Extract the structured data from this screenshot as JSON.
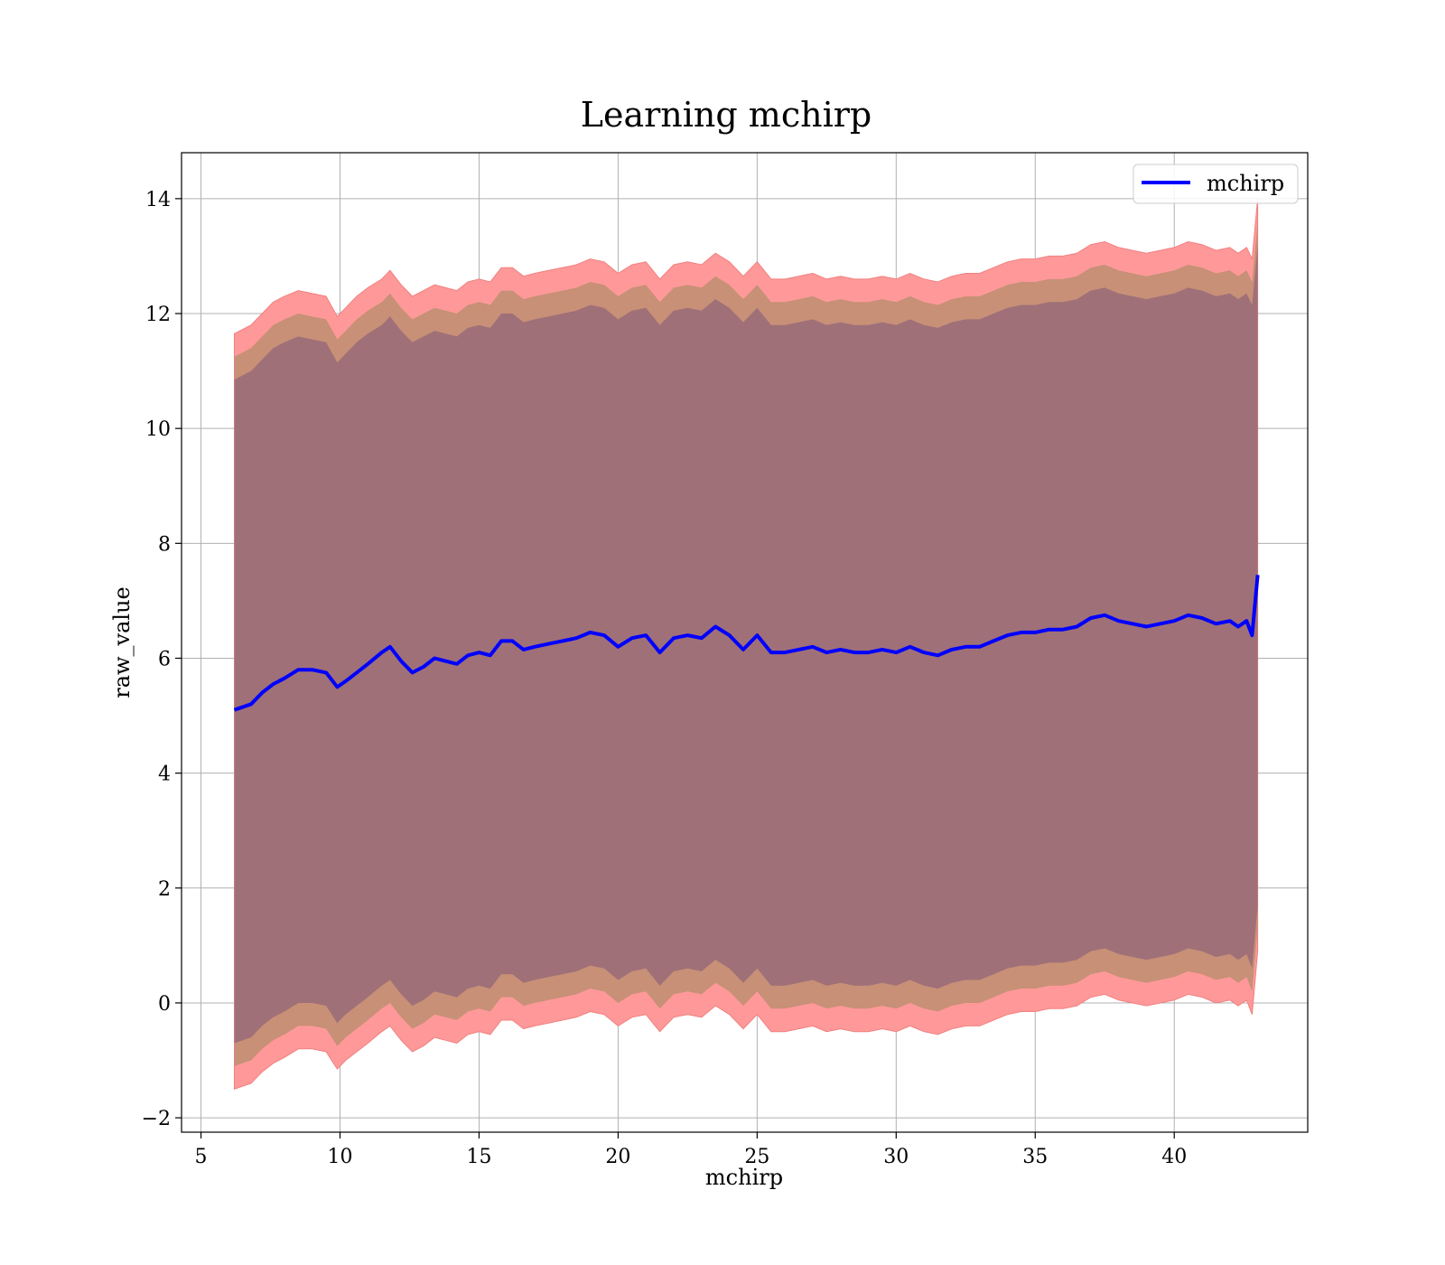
{
  "chart_data": {
    "type": "line",
    "title": "Learning mchirp",
    "xlabel": "mchirp",
    "ylabel": "raw_value",
    "xlim": [
      4.3,
      44.8
    ],
    "ylim": [
      -2.25,
      14.8
    ],
    "xticks": [
      5,
      10,
      15,
      20,
      25,
      30,
      35,
      40
    ],
    "yticks": [
      -2,
      0,
      2,
      4,
      6,
      8,
      10,
      12,
      14
    ],
    "ytick_labels": [
      "−2",
      "0",
      "2",
      "4",
      "6",
      "8",
      "10",
      "12",
      "14"
    ],
    "grid": true,
    "legend_position": "top-right",
    "colors": {
      "line": "#0000ff",
      "band_outer": "#ff9999",
      "band_middle": "#c79077",
      "band_inner": "#a07078"
    },
    "series": [
      {
        "name": "mchirp",
        "x": [
          6.2,
          6.8,
          7.2,
          7.6,
          8.0,
          8.5,
          9.0,
          9.5,
          9.9,
          10.2,
          10.6,
          11.0,
          11.5,
          11.8,
          12.2,
          12.6,
          13.0,
          13.4,
          13.8,
          14.2,
          14.6,
          15.0,
          15.4,
          15.8,
          16.2,
          16.6,
          17.0,
          17.5,
          18.0,
          18.5,
          19.0,
          19.5,
          20.0,
          20.5,
          21.0,
          21.5,
          22.0,
          22.5,
          23.0,
          23.5,
          24.0,
          24.5,
          25.0,
          25.5,
          26.0,
          26.5,
          27.0,
          27.5,
          28.0,
          28.5,
          29.0,
          29.5,
          30.0,
          30.5,
          31.0,
          31.5,
          32.0,
          32.5,
          33.0,
          33.5,
          34.0,
          34.5,
          35.0,
          35.5,
          36.0,
          36.5,
          37.0,
          37.5,
          38.0,
          38.5,
          39.0,
          39.5,
          40.0,
          40.5,
          41.0,
          41.5,
          42.0,
          42.3,
          42.6,
          42.8,
          43.0
        ],
        "mean": [
          5.1,
          5.2,
          5.4,
          5.55,
          5.65,
          5.8,
          5.8,
          5.75,
          5.5,
          5.6,
          5.75,
          5.9,
          6.1,
          6.2,
          5.95,
          5.75,
          5.85,
          6.0,
          5.95,
          5.9,
          6.05,
          6.1,
          6.05,
          6.3,
          6.3,
          6.15,
          6.2,
          6.25,
          6.3,
          6.35,
          6.45,
          6.4,
          6.2,
          6.35,
          6.4,
          6.1,
          6.35,
          6.4,
          6.35,
          6.55,
          6.4,
          6.15,
          6.4,
          6.1,
          6.1,
          6.15,
          6.2,
          6.1,
          6.15,
          6.1,
          6.1,
          6.15,
          6.1,
          6.2,
          6.1,
          6.05,
          6.15,
          6.2,
          6.2,
          6.3,
          6.4,
          6.45,
          6.45,
          6.5,
          6.5,
          6.55,
          6.7,
          6.75,
          6.65,
          6.6,
          6.55,
          6.6,
          6.65,
          6.75,
          6.7,
          6.6,
          6.65,
          6.55,
          6.65,
          6.4,
          7.45
        ],
        "outer_upper": [
          11.65,
          11.8,
          12.0,
          12.2,
          12.3,
          12.4,
          12.35,
          12.3,
          11.95,
          12.1,
          12.3,
          12.45,
          12.6,
          12.75,
          12.5,
          12.3,
          12.4,
          12.5,
          12.45,
          12.4,
          12.55,
          12.6,
          12.55,
          12.8,
          12.8,
          12.65,
          12.7,
          12.75,
          12.8,
          12.85,
          12.95,
          12.9,
          12.7,
          12.85,
          12.9,
          12.6,
          12.85,
          12.9,
          12.85,
          13.05,
          12.9,
          12.65,
          12.9,
          12.6,
          12.6,
          12.65,
          12.7,
          12.6,
          12.65,
          12.6,
          12.6,
          12.65,
          12.6,
          12.7,
          12.6,
          12.55,
          12.65,
          12.7,
          12.7,
          12.8,
          12.9,
          12.95,
          12.95,
          13.0,
          13.0,
          13.05,
          13.2,
          13.25,
          13.15,
          13.1,
          13.05,
          13.1,
          13.15,
          13.25,
          13.2,
          13.1,
          13.15,
          13.05,
          13.15,
          12.95,
          14.0
        ],
        "middle_upper": [
          11.25,
          11.4,
          11.6,
          11.8,
          11.9,
          12.0,
          11.95,
          11.9,
          11.55,
          11.7,
          11.9,
          12.05,
          12.2,
          12.35,
          12.1,
          11.9,
          12.0,
          12.1,
          12.05,
          12.0,
          12.15,
          12.2,
          12.15,
          12.4,
          12.4,
          12.25,
          12.3,
          12.35,
          12.4,
          12.45,
          12.55,
          12.5,
          12.3,
          12.45,
          12.5,
          12.2,
          12.45,
          12.5,
          12.45,
          12.65,
          12.5,
          12.25,
          12.5,
          12.2,
          12.2,
          12.25,
          12.3,
          12.2,
          12.25,
          12.2,
          12.2,
          12.25,
          12.2,
          12.3,
          12.2,
          12.15,
          12.25,
          12.3,
          12.3,
          12.4,
          12.5,
          12.55,
          12.55,
          12.6,
          12.6,
          12.65,
          12.8,
          12.85,
          12.75,
          12.7,
          12.65,
          12.7,
          12.75,
          12.85,
          12.8,
          12.7,
          12.75,
          12.65,
          12.75,
          12.55,
          13.6
        ],
        "inner_upper": [
          10.85,
          11.0,
          11.2,
          11.4,
          11.5,
          11.6,
          11.55,
          11.5,
          11.15,
          11.3,
          11.5,
          11.65,
          11.8,
          11.95,
          11.7,
          11.5,
          11.6,
          11.7,
          11.65,
          11.6,
          11.75,
          11.8,
          11.75,
          12.0,
          12.0,
          11.85,
          11.9,
          11.95,
          12.0,
          12.05,
          12.15,
          12.1,
          11.9,
          12.05,
          12.1,
          11.8,
          12.05,
          12.1,
          12.05,
          12.25,
          12.1,
          11.85,
          12.1,
          11.8,
          11.8,
          11.85,
          11.9,
          11.8,
          11.85,
          11.8,
          11.8,
          11.85,
          11.8,
          11.9,
          11.8,
          11.75,
          11.85,
          11.9,
          11.9,
          12.0,
          12.1,
          12.15,
          12.15,
          12.2,
          12.2,
          12.25,
          12.4,
          12.45,
          12.35,
          12.3,
          12.25,
          12.3,
          12.35,
          12.45,
          12.4,
          12.3,
          12.35,
          12.25,
          12.35,
          12.15,
          13.2
        ],
        "inner_lower": [
          -0.7,
          -0.6,
          -0.4,
          -0.25,
          -0.15,
          0.0,
          0.0,
          -0.05,
          -0.35,
          -0.2,
          -0.05,
          0.1,
          0.3,
          0.4,
          0.15,
          -0.05,
          0.05,
          0.2,
          0.15,
          0.1,
          0.25,
          0.3,
          0.25,
          0.5,
          0.5,
          0.35,
          0.4,
          0.45,
          0.5,
          0.55,
          0.65,
          0.6,
          0.4,
          0.55,
          0.6,
          0.3,
          0.55,
          0.6,
          0.55,
          0.75,
          0.6,
          0.35,
          0.6,
          0.3,
          0.3,
          0.35,
          0.4,
          0.3,
          0.35,
          0.3,
          0.3,
          0.35,
          0.3,
          0.4,
          0.3,
          0.25,
          0.35,
          0.4,
          0.4,
          0.5,
          0.6,
          0.65,
          0.65,
          0.7,
          0.7,
          0.75,
          0.9,
          0.95,
          0.85,
          0.8,
          0.75,
          0.8,
          0.85,
          0.95,
          0.9,
          0.8,
          0.85,
          0.75,
          0.85,
          0.6,
          1.7
        ],
        "middle_lower": [
          -1.1,
          -1.0,
          -0.8,
          -0.65,
          -0.55,
          -0.4,
          -0.4,
          -0.45,
          -0.75,
          -0.6,
          -0.45,
          -0.3,
          -0.1,
          0.0,
          -0.25,
          -0.45,
          -0.35,
          -0.2,
          -0.25,
          -0.3,
          -0.15,
          -0.1,
          -0.15,
          0.1,
          0.1,
          -0.05,
          0.0,
          0.05,
          0.1,
          0.15,
          0.25,
          0.2,
          0.0,
          0.15,
          0.2,
          -0.1,
          0.15,
          0.2,
          0.15,
          0.35,
          0.2,
          -0.05,
          0.2,
          -0.1,
          -0.1,
          -0.05,
          0.0,
          -0.1,
          -0.05,
          -0.1,
          -0.1,
          -0.05,
          -0.1,
          0.0,
          -0.1,
          -0.15,
          -0.05,
          0.0,
          0.0,
          0.1,
          0.2,
          0.25,
          0.25,
          0.3,
          0.3,
          0.35,
          0.5,
          0.55,
          0.45,
          0.4,
          0.35,
          0.4,
          0.45,
          0.55,
          0.5,
          0.4,
          0.45,
          0.35,
          0.45,
          0.2,
          1.3
        ],
        "outer_lower": [
          -1.5,
          -1.4,
          -1.2,
          -1.05,
          -0.95,
          -0.8,
          -0.8,
          -0.85,
          -1.15,
          -1.0,
          -0.85,
          -0.7,
          -0.5,
          -0.4,
          -0.65,
          -0.85,
          -0.75,
          -0.6,
          -0.65,
          -0.7,
          -0.55,
          -0.5,
          -0.55,
          -0.3,
          -0.3,
          -0.45,
          -0.4,
          -0.35,
          -0.3,
          -0.25,
          -0.15,
          -0.2,
          -0.4,
          -0.25,
          -0.2,
          -0.5,
          -0.25,
          -0.2,
          -0.25,
          -0.05,
          -0.2,
          -0.45,
          -0.2,
          -0.5,
          -0.5,
          -0.45,
          -0.4,
          -0.5,
          -0.45,
          -0.5,
          -0.5,
          -0.45,
          -0.5,
          -0.4,
          -0.5,
          -0.55,
          -0.45,
          -0.4,
          -0.4,
          -0.3,
          -0.2,
          -0.15,
          -0.15,
          -0.1,
          -0.1,
          -0.05,
          0.1,
          0.15,
          0.05,
          0.0,
          -0.05,
          0.0,
          0.05,
          0.15,
          0.1,
          0.0,
          0.05,
          -0.05,
          0.05,
          -0.2,
          0.9
        ]
      }
    ]
  }
}
